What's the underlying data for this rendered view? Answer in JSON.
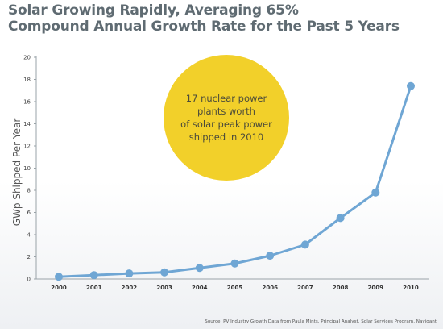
{
  "title": {
    "line1": "Solar Growing Rapidly, Averaging 65%",
    "line2": "Compound Annual Growth Rate for the Past 5 Years"
  },
  "source": "Source: PV Industry Growth Data from Paula Mints, Principal Analyst, Solar Services Program, Navigant",
  "callout": {
    "lines": [
      "17 nuclear power",
      "plants worth",
      "of solar peak power",
      "shipped in 2010"
    ]
  },
  "colors": {
    "line": "#6fa6d4",
    "marker": "#6fa6d4",
    "callout": "#f2d02a",
    "title": "#5f6b72",
    "axis": "#9aa3a8"
  },
  "chart_data": {
    "type": "line",
    "title": "Solar Growing Rapidly, Averaging 65% Compound Annual Growth Rate for the Past 5 Years",
    "xlabel": "",
    "ylabel": "GWp Shipped Per Year",
    "categories": [
      "2000",
      "2001",
      "2002",
      "2003",
      "2004",
      "2005",
      "2006",
      "2007",
      "2008",
      "2009",
      "2010"
    ],
    "series": [
      {
        "values": [
          0.2,
          0.35,
          0.5,
          0.6,
          1.0,
          1.4,
          2.1,
          3.1,
          5.5,
          7.8,
          17.4
        ]
      }
    ],
    "yticks": [
      "0",
      "2",
      "4",
      "6",
      "8",
      "10",
      "12",
      "14",
      "16",
      "18",
      "20"
    ],
    "ylim": [
      0,
      20
    ],
    "grid": false,
    "legend": "none"
  }
}
